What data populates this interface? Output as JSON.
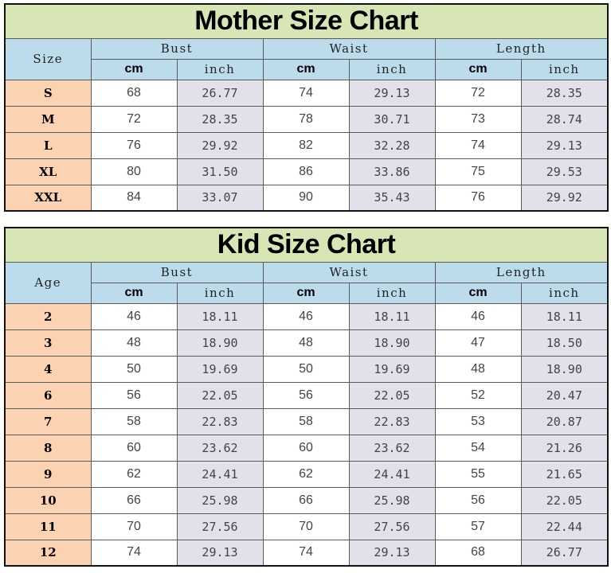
{
  "mother": {
    "title": "Mother Size Chart",
    "label_header": "Size",
    "groups": [
      "Bust",
      "Waist",
      "Length"
    ],
    "units": [
      "cm",
      "inch",
      "cm",
      "inch",
      "cm",
      "inch"
    ],
    "rows": [
      {
        "label": "S",
        "values": [
          "68",
          "26.77",
          "74",
          "29.13",
          "72",
          "28.35"
        ]
      },
      {
        "label": "M",
        "values": [
          "72",
          "28.35",
          "78",
          "30.71",
          "73",
          "28.74"
        ]
      },
      {
        "label": "L",
        "values": [
          "76",
          "29.92",
          "82",
          "32.28",
          "74",
          "29.13"
        ]
      },
      {
        "label": "XL",
        "values": [
          "80",
          "31.50",
          "86",
          "33.86",
          "75",
          "29.53"
        ]
      },
      {
        "label": "XXL",
        "values": [
          "84",
          "33.07",
          "90",
          "35.43",
          "76",
          "29.92"
        ]
      }
    ]
  },
  "kid": {
    "title": "Kid Size Chart",
    "label_header": "Age",
    "groups": [
      "Bust",
      "Waist",
      "Length"
    ],
    "units": [
      "cm",
      "inch",
      "cm",
      "inch",
      "cm",
      "inch"
    ],
    "rows": [
      {
        "label": "2",
        "values": [
          "46",
          "18.11",
          "46",
          "18.11",
          "46",
          "18.11"
        ]
      },
      {
        "label": "3",
        "values": [
          "48",
          "18.90",
          "48",
          "18.90",
          "47",
          "18.50"
        ]
      },
      {
        "label": "4",
        "values": [
          "50",
          "19.69",
          "50",
          "19.69",
          "48",
          "18.90"
        ]
      },
      {
        "label": "6",
        "values": [
          "56",
          "22.05",
          "56",
          "22.05",
          "52",
          "20.47"
        ]
      },
      {
        "label": "7",
        "values": [
          "58",
          "22.83",
          "58",
          "22.83",
          "53",
          "20.87"
        ]
      },
      {
        "label": "8",
        "values": [
          "60",
          "23.62",
          "60",
          "23.62",
          "54",
          "21.26"
        ]
      },
      {
        "label": "9",
        "values": [
          "62",
          "24.41",
          "62",
          "24.41",
          "55",
          "21.65"
        ]
      },
      {
        "label": "10",
        "values": [
          "66",
          "25.98",
          "66",
          "25.98",
          "56",
          "22.05"
        ]
      },
      {
        "label": "11",
        "values": [
          "70",
          "27.56",
          "70",
          "27.56",
          "57",
          "22.44"
        ]
      },
      {
        "label": "12",
        "values": [
          "74",
          "29.13",
          "74",
          "29.13",
          "68",
          "26.77"
        ]
      }
    ]
  },
  "colors": {
    "title_bg": "#d8e6b6",
    "header_bg": "#bcdcec",
    "label_bg": "#fbd2b2",
    "inch_bg": "#e3dfeb"
  }
}
